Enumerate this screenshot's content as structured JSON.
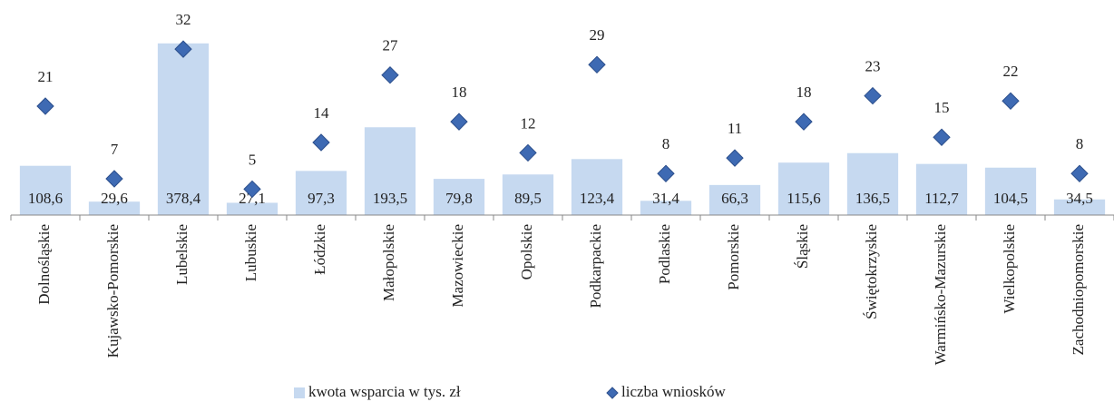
{
  "chart_data": {
    "type": "bar",
    "categories": [
      "Dolnośląskie",
      "Kujawsko-Pomorskie",
      "Lubelskie",
      "Lubuskie",
      "Łódzkie",
      "Małopolskie",
      "Mazowieckie",
      "Opolskie",
      "Podkarpackie",
      "Podlaskie",
      "Pomorskie",
      "Śląskie",
      "Świętokrzyskie",
      "Warmińsko-Mazurskie",
      "Wielkopolskie",
      "Zachodniopomorskie"
    ],
    "series": [
      {
        "name": "kwota wsparcia w tys. zł",
        "type": "bar",
        "color": "#c6d9f0",
        "values": [
          108.6,
          29.6,
          378.4,
          27.1,
          97.3,
          193.5,
          79.8,
          89.5,
          123.4,
          31.4,
          66.3,
          115.6,
          136.5,
          112.7,
          104.5,
          34.5
        ],
        "value_labels": [
          "108,6",
          "29,6",
          "378,4",
          "27,1",
          "97,3",
          "193,5",
          "79,8",
          "89,5",
          "123,4",
          "31,4",
          "66,3",
          "115,6",
          "136,5",
          "112,7",
          "104,5",
          "34,5"
        ]
      },
      {
        "name": "liczba wniosków",
        "type": "scatter",
        "axis": "y2",
        "color": "#3e6ab3",
        "values": [
          21,
          7,
          32,
          5,
          14,
          27,
          18,
          12,
          29,
          8,
          11,
          18,
          23,
          15,
          22,
          8
        ]
      }
    ],
    "ylim": [
      0,
      400
    ],
    "y2lim": [
      0,
      35
    ],
    "legend": "bottom"
  }
}
